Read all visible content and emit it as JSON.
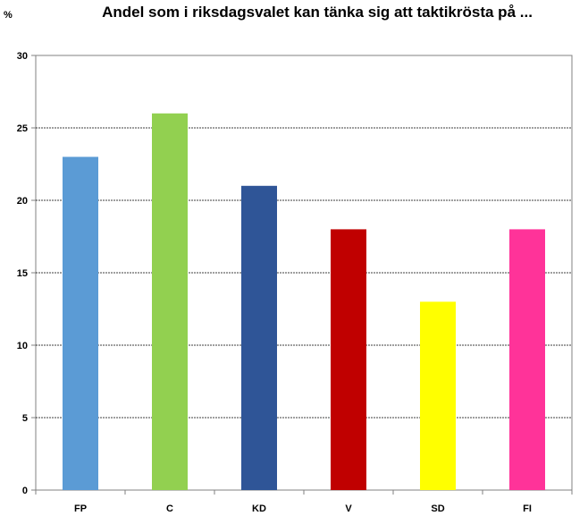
{
  "chart_data": {
    "type": "bar",
    "title": "Andel som i riksdagsvalet kan tänka sig att taktikrösta på ...",
    "unit_label": "%",
    "xlabel": "",
    "ylabel": "",
    "ylim": [
      0,
      30
    ],
    "yticks": [
      0,
      5,
      10,
      15,
      20,
      25,
      30
    ],
    "grid": true,
    "legend": "none",
    "categories": [
      "FP",
      "C",
      "KD",
      "V",
      "SD",
      "FI"
    ],
    "values": [
      23,
      26,
      21,
      18,
      13,
      18
    ],
    "colors": [
      "#5b9bd5",
      "#92d050",
      "#2f5597",
      "#c00000",
      "#ffff00",
      "#ff3399"
    ]
  }
}
